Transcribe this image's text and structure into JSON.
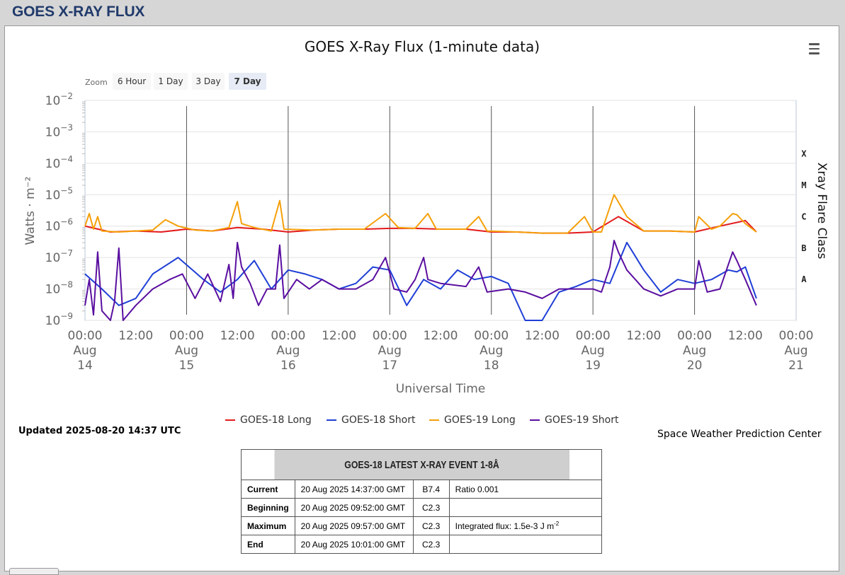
{
  "page": {
    "header_title": "GOES X-RAY FLUX"
  },
  "chart_data": {
    "type": "line",
    "title": "GOES X-Ray Flux (1-minute data)",
    "xlabel": "Universal Time",
    "ylabel": "Watts · m⁻²",
    "y2label": "Xray Flare Class",
    "y_scale": "log",
    "ylim": [
      1e-09,
      0.01
    ],
    "xlim": [
      "2025-08-14 00:00",
      "2025-08-21 00:00"
    ],
    "grid": true,
    "legend": "bottom",
    "zoom": {
      "label": "Zoom",
      "buttons": [
        "6 Hour",
        "1 Day",
        "3 Day",
        "7 Day"
      ],
      "selected": "7 Day"
    },
    "y_ticks": [
      {
        "base": "10",
        "exp": "−2",
        "value": 0.01
      },
      {
        "base": "10",
        "exp": "−3",
        "value": 0.001
      },
      {
        "base": "10",
        "exp": "−4",
        "value": 0.0001
      },
      {
        "base": "10",
        "exp": "−5",
        "value": 1e-05
      },
      {
        "base": "10",
        "exp": "−6",
        "value": 1e-06
      },
      {
        "base": "10",
        "exp": "−7",
        "value": 1e-07
      },
      {
        "base": "10",
        "exp": "−8",
        "value": 1e-08
      },
      {
        "base": "10",
        "exp": "−9",
        "value": 1e-09
      }
    ],
    "flare_classes": [
      {
        "label": "X",
        "value": 0.0002
      },
      {
        "label": "M",
        "value": 2e-05
      },
      {
        "label": "C",
        "value": 2e-06
      },
      {
        "label": "B",
        "value": 2e-07
      },
      {
        "label": "A",
        "value": 2e-08
      }
    ],
    "x_ticks": [
      {
        "time": "2025-08-14 00:00",
        "lines": [
          "00:00",
          "Aug",
          "14"
        ]
      },
      {
        "time": "2025-08-14 12:00",
        "lines": [
          "12:00"
        ]
      },
      {
        "time": "2025-08-15 00:00",
        "lines": [
          "00:00",
          "Aug",
          "15"
        ]
      },
      {
        "time": "2025-08-15 12:00",
        "lines": [
          "12:00"
        ]
      },
      {
        "time": "2025-08-16 00:00",
        "lines": [
          "00:00",
          "Aug",
          "16"
        ]
      },
      {
        "time": "2025-08-16 12:00",
        "lines": [
          "12:00"
        ]
      },
      {
        "time": "2025-08-17 00:00",
        "lines": [
          "00:00",
          "Aug",
          "17"
        ]
      },
      {
        "time": "2025-08-17 12:00",
        "lines": [
          "12:00"
        ]
      },
      {
        "time": "2025-08-18 00:00",
        "lines": [
          "00:00",
          "Aug",
          "18"
        ]
      },
      {
        "time": "2025-08-18 12:00",
        "lines": [
          "12:00"
        ]
      },
      {
        "time": "2025-08-19 00:00",
        "lines": [
          "00:00",
          "Aug",
          "19"
        ]
      },
      {
        "time": "2025-08-19 12:00",
        "lines": [
          "12:00"
        ]
      },
      {
        "time": "2025-08-20 00:00",
        "lines": [
          "00:00",
          "Aug",
          "20"
        ]
      },
      {
        "time": "2025-08-20 12:00",
        "lines": [
          "12:00"
        ]
      },
      {
        "time": "2025-08-21 00:00",
        "lines": [
          "00:00",
          "Aug",
          "21"
        ]
      }
    ],
    "day_lines": [
      "2025-08-15 00:00",
      "2025-08-16 00:00",
      "2025-08-17 00:00",
      "2025-08-18 00:00",
      "2025-08-19 00:00",
      "2025-08-20 00:00"
    ],
    "series": [
      {
        "name": "GOES-18 Long",
        "color": "#e31a1c",
        "points": [
          [
            "2025-08-14 00:00",
            1e-06
          ],
          [
            "2025-08-14 06:00",
            6.5e-07
          ],
          [
            "2025-08-14 12:00",
            7e-07
          ],
          [
            "2025-08-14 18:00",
            6.5e-07
          ],
          [
            "2025-08-15 00:00",
            8e-07
          ],
          [
            "2025-08-15 06:00",
            7e-07
          ],
          [
            "2025-08-15 12:00",
            9e-07
          ],
          [
            "2025-08-15 18:00",
            8e-07
          ],
          [
            "2025-08-16 00:00",
            6.5e-07
          ],
          [
            "2025-08-16 06:00",
            7.5e-07
          ],
          [
            "2025-08-16 12:00",
            8e-07
          ],
          [
            "2025-08-16 18:00",
            8e-07
          ],
          [
            "2025-08-17 00:00",
            8.5e-07
          ],
          [
            "2025-08-17 06:00",
            8.5e-07
          ],
          [
            "2025-08-17 12:00",
            8e-07
          ],
          [
            "2025-08-17 18:00",
            8e-07
          ],
          [
            "2025-08-18 00:00",
            6.5e-07
          ],
          [
            "2025-08-18 06:00",
            6.5e-07
          ],
          [
            "2025-08-18 12:00",
            6e-07
          ],
          [
            "2025-08-18 18:00",
            6e-07
          ],
          [
            "2025-08-19 00:00",
            6.5e-07
          ],
          [
            "2025-08-19 06:00",
            2e-06
          ],
          [
            "2025-08-19 12:00",
            7e-07
          ],
          [
            "2025-08-19 18:00",
            7e-07
          ],
          [
            "2025-08-20 00:00",
            6.5e-07
          ],
          [
            "2025-08-20 06:00",
            1e-06
          ],
          [
            "2025-08-20 12:00",
            1.5e-06
          ],
          [
            "2025-08-20 14:37",
            6.5e-07
          ]
        ]
      },
      {
        "name": "GOES-18 Short",
        "color": "#1f3fd6",
        "points": [
          [
            "2025-08-14 00:00",
            3e-08
          ],
          [
            "2025-08-14 04:00",
            1e-08
          ],
          [
            "2025-08-14 08:00",
            3e-09
          ],
          [
            "2025-08-14 12:00",
            5e-09
          ],
          [
            "2025-08-14 16:00",
            3e-08
          ],
          [
            "2025-08-14 22:00",
            1e-07
          ],
          [
            "2025-08-15 04:00",
            2e-08
          ],
          [
            "2025-08-15 08:00",
            8e-09
          ],
          [
            "2025-08-15 12:00",
            2e-08
          ],
          [
            "2025-08-15 16:00",
            8e-08
          ],
          [
            "2025-08-15 20:00",
            1e-08
          ],
          [
            "2025-08-16 00:00",
            4e-08
          ],
          [
            "2025-08-16 04:00",
            3e-08
          ],
          [
            "2025-08-16 08:00",
            2e-08
          ],
          [
            "2025-08-16 12:00",
            1e-08
          ],
          [
            "2025-08-16 16:00",
            1.5e-08
          ],
          [
            "2025-08-16 20:00",
            5e-08
          ],
          [
            "2025-08-17 00:00",
            4e-08
          ],
          [
            "2025-08-17 04:00",
            3e-09
          ],
          [
            "2025-08-17 08:00",
            2e-08
          ],
          [
            "2025-08-17 12:00",
            1e-08
          ],
          [
            "2025-08-17 16:00",
            4e-08
          ],
          [
            "2025-08-17 20:00",
            2e-08
          ],
          [
            "2025-08-18 00:00",
            2.5e-08
          ],
          [
            "2025-08-18 04:00",
            1.5e-08
          ],
          [
            "2025-08-18 08:00",
            1e-09
          ],
          [
            "2025-08-18 12:00",
            1e-09
          ],
          [
            "2025-08-18 16:00",
            8e-09
          ],
          [
            "2025-08-18 20:00",
            1.2e-08
          ],
          [
            "2025-08-19 00:00",
            2e-08
          ],
          [
            "2025-08-19 04:00",
            1.5e-08
          ],
          [
            "2025-08-19 08:00",
            3e-07
          ],
          [
            "2025-08-19 12:00",
            4e-08
          ],
          [
            "2025-08-19 16:00",
            8e-09
          ],
          [
            "2025-08-19 20:00",
            2e-08
          ],
          [
            "2025-08-20 00:00",
            1.5e-08
          ],
          [
            "2025-08-20 04:00",
            2e-08
          ],
          [
            "2025-08-20 08:00",
            4e-08
          ],
          [
            "2025-08-20 10:00",
            3.5e-08
          ],
          [
            "2025-08-20 12:00",
            5e-08
          ],
          [
            "2025-08-20 14:37",
            5e-09
          ]
        ]
      },
      {
        "name": "GOES-19 Long",
        "color": "#f5a00a",
        "points": [
          [
            "2025-08-14 00:00",
            1e-06
          ],
          [
            "2025-08-14 01:00",
            2.5e-06
          ],
          [
            "2025-08-14 02:00",
            8e-07
          ],
          [
            "2025-08-14 03:00",
            2e-06
          ],
          [
            "2025-08-14 04:00",
            7e-07
          ],
          [
            "2025-08-14 08:00",
            6.5e-07
          ],
          [
            "2025-08-14 12:00",
            7e-07
          ],
          [
            "2025-08-14 16:00",
            7.5e-07
          ],
          [
            "2025-08-14 19:00",
            1.6e-06
          ],
          [
            "2025-08-14 22:00",
            1e-06
          ],
          [
            "2025-08-15 02:00",
            7.5e-07
          ],
          [
            "2025-08-15 06:00",
            7e-07
          ],
          [
            "2025-08-15 10:00",
            9e-07
          ],
          [
            "2025-08-15 12:00",
            6e-06
          ],
          [
            "2025-08-15 13:00",
            1.2e-06
          ],
          [
            "2025-08-15 16:00",
            9e-07
          ],
          [
            "2025-08-15 20:00",
            7e-07
          ],
          [
            "2025-08-15 22:00",
            6.5e-06
          ],
          [
            "2025-08-15 23:00",
            8e-07
          ],
          [
            "2025-08-16 06:00",
            7.5e-07
          ],
          [
            "2025-08-16 12:00",
            8e-07
          ],
          [
            "2025-08-16 18:00",
            8e-07
          ],
          [
            "2025-08-16 23:00",
            2.5e-06
          ],
          [
            "2025-08-17 02:00",
            9e-07
          ],
          [
            "2025-08-17 06:00",
            8.5e-07
          ],
          [
            "2025-08-17 09:00",
            2.5e-06
          ],
          [
            "2025-08-17 11:00",
            8e-07
          ],
          [
            "2025-08-17 18:00",
            8e-07
          ],
          [
            "2025-08-17 21:00",
            2e-06
          ],
          [
            "2025-08-17 23:00",
            7e-07
          ],
          [
            "2025-08-18 06:00",
            6.5e-07
          ],
          [
            "2025-08-18 12:00",
            6e-07
          ],
          [
            "2025-08-18 18:00",
            6e-07
          ],
          [
            "2025-08-18 22:00",
            2e-06
          ],
          [
            "2025-08-19 00:00",
            6.5e-07
          ],
          [
            "2025-08-19 02:00",
            6.5e-07
          ],
          [
            "2025-08-19 05:00",
            1e-05
          ],
          [
            "2025-08-19 08:00",
            2e-06
          ],
          [
            "2025-08-19 12:00",
            7e-07
          ],
          [
            "2025-08-19 18:00",
            7e-07
          ],
          [
            "2025-08-20 00:00",
            6.5e-07
          ],
          [
            "2025-08-20 01:00",
            2e-06
          ],
          [
            "2025-08-20 04:00",
            8e-07
          ],
          [
            "2025-08-20 06:00",
            1e-06
          ],
          [
            "2025-08-20 09:00",
            2.5e-06
          ],
          [
            "2025-08-20 10:00",
            2.3e-06
          ],
          [
            "2025-08-20 12:00",
            1.2e-06
          ],
          [
            "2025-08-20 14:37",
            6.5e-07
          ]
        ]
      },
      {
        "name": "GOES-19 Short",
        "color": "#5a0fa0",
        "points": [
          [
            "2025-08-14 00:00",
            3e-09
          ],
          [
            "2025-08-14 01:00",
            2e-08
          ],
          [
            "2025-08-14 02:00",
            1.5e-09
          ],
          [
            "2025-08-14 03:00",
            1.5e-07
          ],
          [
            "2025-08-14 04:00",
            2e-09
          ],
          [
            "2025-08-14 06:00",
            1e-09
          ],
          [
            "2025-08-14 07:00",
            4e-09
          ],
          [
            "2025-08-14 08:00",
            2e-07
          ],
          [
            "2025-08-14 09:00",
            1e-09
          ],
          [
            "2025-08-14 12:00",
            3e-09
          ],
          [
            "2025-08-14 16:00",
            1e-08
          ],
          [
            "2025-08-14 20:00",
            2e-08
          ],
          [
            "2025-08-14 23:00",
            3e-08
          ],
          [
            "2025-08-15 02:00",
            5e-09
          ],
          [
            "2025-08-15 05:00",
            3e-08
          ],
          [
            "2025-08-15 08:00",
            4e-09
          ],
          [
            "2025-08-15 10:00",
            6e-08
          ],
          [
            "2025-08-15 11:00",
            5e-09
          ],
          [
            "2025-08-15 12:00",
            3e-07
          ],
          [
            "2025-08-15 13:00",
            5e-08
          ],
          [
            "2025-08-15 15:00",
            1.5e-08
          ],
          [
            "2025-08-15 17:00",
            3e-09
          ],
          [
            "2025-08-15 19:00",
            1e-08
          ],
          [
            "2025-08-15 21:00",
            1e-08
          ],
          [
            "2025-08-15 22:00",
            2.5e-07
          ],
          [
            "2025-08-15 23:00",
            5e-09
          ],
          [
            "2025-08-16 02:00",
            2e-08
          ],
          [
            "2025-08-16 05:00",
            1e-08
          ],
          [
            "2025-08-16 08:00",
            2e-08
          ],
          [
            "2025-08-16 12:00",
            1e-08
          ],
          [
            "2025-08-16 16:00",
            1e-08
          ],
          [
            "2025-08-16 20:00",
            2e-08
          ],
          [
            "2025-08-16 23:00",
            1e-07
          ],
          [
            "2025-08-17 01:00",
            1e-08
          ],
          [
            "2025-08-17 04:00",
            8e-09
          ],
          [
            "2025-08-17 06:00",
            2e-08
          ],
          [
            "2025-08-17 08:00",
            1e-07
          ],
          [
            "2025-08-17 09:00",
            2e-08
          ],
          [
            "2025-08-17 12:00",
            1.5e-08
          ],
          [
            "2025-08-17 18:00",
            1.2e-08
          ],
          [
            "2025-08-17 21:00",
            5e-08
          ],
          [
            "2025-08-17 23:00",
            8e-09
          ],
          [
            "2025-08-18 04:00",
            1e-08
          ],
          [
            "2025-08-18 08:00",
            8e-09
          ],
          [
            "2025-08-18 12:00",
            5e-09
          ],
          [
            "2025-08-18 16:00",
            1e-08
          ],
          [
            "2025-08-18 20:00",
            1e-08
          ],
          [
            "2025-08-19 00:00",
            1e-08
          ],
          [
            "2025-08-19 02:00",
            8e-09
          ],
          [
            "2025-08-19 04:00",
            5e-08
          ],
          [
            "2025-08-19 05:00",
            3.5e-07
          ],
          [
            "2025-08-19 06:00",
            1.5e-07
          ],
          [
            "2025-08-19 08:00",
            4e-08
          ],
          [
            "2025-08-19 12:00",
            1e-08
          ],
          [
            "2025-08-19 16:00",
            6e-09
          ],
          [
            "2025-08-19 20:00",
            1e-08
          ],
          [
            "2025-08-20 00:00",
            1e-08
          ],
          [
            "2025-08-20 01:00",
            8e-08
          ],
          [
            "2025-08-20 03:00",
            8e-09
          ],
          [
            "2025-08-20 06:00",
            1e-08
          ],
          [
            "2025-08-20 09:00",
            1.5e-07
          ],
          [
            "2025-08-20 10:00",
            8e-08
          ],
          [
            "2025-08-20 12:00",
            2e-08
          ],
          [
            "2025-08-20 14:37",
            3e-09
          ]
        ]
      }
    ]
  },
  "info": {
    "updated": "Updated 2025-08-20 14:37 UTC",
    "credit": "Space Weather Prediction Center"
  },
  "event_table": {
    "title": "GOES-18 LATEST X-RAY EVENT 1-8Å",
    "rows": [
      {
        "label": "Current",
        "time": "20 Aug 2025 14:37:00 GMT",
        "class": "B7.4",
        "note": "Ratio 0.001"
      },
      {
        "label": "Beginning",
        "time": "20 Aug 2025 09:52:00 GMT",
        "class": "C2.3",
        "note": ""
      },
      {
        "label": "Maximum",
        "time": "20 Aug 2025 09:57:00 GMT",
        "class": "C2.3",
        "note": "Integrated flux: 1.5e-3 J m",
        "note_sup": "-2"
      },
      {
        "label": "End",
        "time": "20 Aug 2025 10:01:00 GMT",
        "class": "C2.3",
        "note": ""
      }
    ]
  }
}
